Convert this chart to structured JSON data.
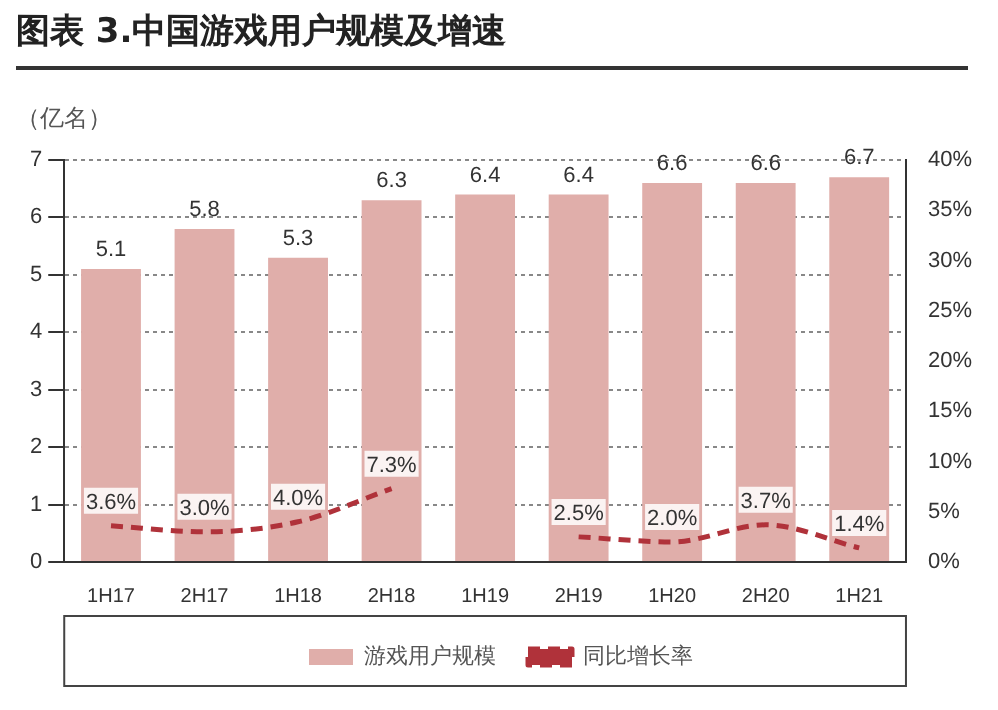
{
  "chart_data": {
    "type": "bar",
    "title": "图表 3.中国游戏用户规模及增速",
    "ylabel": "（亿名）",
    "categories": [
      "1H17",
      "2H17",
      "1H18",
      "2H18",
      "1H19",
      "2H19",
      "1H20",
      "2H20",
      "1H21"
    ],
    "series": [
      {
        "name": "游戏用户规模",
        "color": "#e0aeaa",
        "values": [
          5.1,
          5.8,
          5.3,
          6.3,
          6.4,
          6.4,
          6.6,
          6.6,
          6.7
        ],
        "value_labels": [
          "5.1",
          "5.8",
          "5.3",
          "6.3",
          "6.4",
          "6.4",
          "6.6",
          "6.6",
          "6.7"
        ]
      },
      {
        "name": "同比增长率",
        "type": "line",
        "axis": "y2",
        "color": "#b0323a",
        "line_style": "dashed",
        "marker": "none",
        "values": [
          3.6,
          3.0,
          4.0,
          7.3,
          null,
          2.5,
          2.0,
          3.7,
          1.4
        ],
        "value_labels": [
          "3.6%",
          "3.0%",
          "4.0%",
          "7.3%",
          null,
          "2.5%",
          "2.0%",
          "3.7%",
          "1.4%"
        ]
      }
    ],
    "ylim": [
      0,
      7
    ],
    "yticks": [
      0,
      1,
      2,
      3,
      4,
      5,
      6,
      7
    ],
    "y2lim": [
      0,
      40
    ],
    "y2ticks": [
      {
        "value": 0,
        "label": "0%"
      },
      {
        "value": 5,
        "label": "5%"
      },
      {
        "value": 10,
        "label": "10%"
      },
      {
        "value": 15,
        "label": "15%"
      },
      {
        "value": 20,
        "label": "20%"
      },
      {
        "value": 25,
        "label": "25%"
      },
      {
        "value": 30,
        "label": "30%"
      },
      {
        "value": 35,
        "label": "35%"
      },
      {
        "value": 40,
        "label": "40%"
      }
    ],
    "grid": "y",
    "legend": "bottom"
  }
}
